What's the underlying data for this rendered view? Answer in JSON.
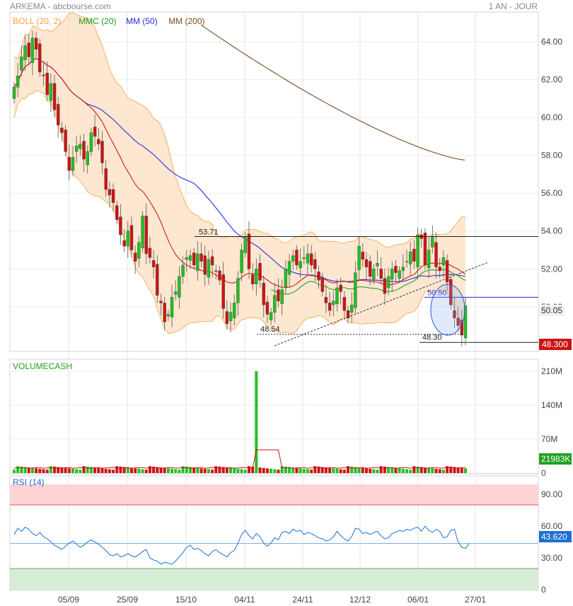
{
  "header": {
    "title": "ARKEMA - abcbourse.com",
    "period": "1 AN - JOUR"
  },
  "colors": {
    "up": "#22c022",
    "down": "#cc1414",
    "boll_fill": "#fde3c8",
    "boll_line": "#f5b262",
    "mmc20": "#189a18",
    "mm50": "#2a2ae0",
    "mm200": "#7a4a22",
    "mm20_red": "#d41a1a",
    "price_tag": "#cc1414",
    "volume_tag": "#22a022",
    "rsi_tag": "#1d6fd0",
    "rsi_line": "#2b7fd6",
    "rsi_over": "#fdd3d3",
    "rsi_under": "#d6ecd6"
  },
  "chart_data": [
    {
      "type": "candlestick",
      "legend": [
        {
          "label": "BOLL (20, 2)",
          "color": "#f5a142"
        },
        {
          "label": "MMC (20)",
          "color": "#189a18"
        },
        {
          "label": "MM (50)",
          "color": "#2a2ae0"
        },
        {
          "label": "MM (200)",
          "color": "#7a4a22"
        }
      ],
      "x_ticks": [
        "05/09",
        "25/09",
        "15/10",
        "04/11",
        "24/11",
        "12/12",
        "06/01",
        "27/01"
      ],
      "y_ticks": [
        "64.00",
        "62.00",
        "60.00",
        "58.00",
        "56.00",
        "54.00",
        "52.00",
        "50.00"
      ],
      "ylim": [
        47.6,
        65.2
      ],
      "close": [
        61.6,
        62.2,
        63.2,
        63.8,
        63.2,
        64.2,
        63.6,
        62.4,
        62.2,
        61.2,
        61.8,
        60.4,
        59.6,
        59.2,
        58.2,
        57.2,
        57.9,
        58.5,
        58.6,
        57.8,
        58.2,
        59.2,
        59.0,
        58.6,
        57.6,
        56.2,
        55.9,
        55.5,
        54.6,
        53.8,
        53.2,
        54.0,
        53.0,
        52.4,
        53.4,
        54.8,
        52.8,
        52.6,
        52.1,
        50.6,
        50.2,
        49.2,
        49.6,
        50.5,
        50.8,
        51.6,
        52.2,
        52.6,
        52.7,
        52.2,
        52.8,
        52.4,
        51.7,
        52.5,
        52.2,
        51.9,
        51.4,
        49.9,
        49.1,
        49.7,
        50.2,
        51.5,
        53.0,
        53.7,
        52.0,
        51.2,
        52.0,
        51.4,
        50.1,
        49.6,
        49.7,
        50.6,
        50.3,
        50.9,
        52.0,
        52.4,
        52.7,
        52.2,
        52.4,
        52.6,
        52.8,
        52.2,
        52.0,
        51.4,
        50.8,
        50.2,
        49.8,
        50.3,
        51.0,
        50.8,
        49.8,
        49.4,
        50.1,
        51.8,
        53.2,
        52.5,
        52.1,
        51.6,
        52.0,
        52.3,
        51.5,
        50.7,
        51.6,
        52.0,
        51.8,
        51.9,
        52.1,
        52.4,
        52.9,
        52.4,
        53.8,
        53.6,
        52.2,
        53.0,
        53.7,
        52.1,
        51.9,
        52.6,
        51.3,
        50.1,
        49.4,
        49.0,
        48.5,
        50.05
      ],
      "annotations": [
        {
          "label": "53.71",
          "value": 53.71
        },
        {
          "label": "48.54",
          "value": 48.54
        },
        {
          "label": "50.50",
          "value": 50.5
        },
        {
          "label": "48.30",
          "value": 48.3
        }
      ],
      "current_value_tag": "50.05",
      "last_price_tag": "48.300"
    },
    {
      "type": "bar",
      "title": "VOLUMECASH",
      "y_ticks": [
        "210M",
        "140M",
        "70M",
        "0"
      ],
      "ylim": [
        0,
        240
      ],
      "spike": {
        "value": 210
      },
      "last_value_tag": "21983K"
    },
    {
      "type": "line",
      "title": "RSI (14)",
      "y_ticks": [
        "90.00",
        "60.00",
        "30.00",
        "0"
      ],
      "ylim": [
        0,
        100
      ],
      "overbought": 80,
      "oversold": 20,
      "values": [
        52,
        58,
        55,
        59,
        57,
        53,
        51,
        54,
        50,
        48,
        45,
        42,
        40,
        38,
        41,
        44,
        46,
        43,
        40,
        42,
        45,
        47,
        45,
        43,
        40,
        37,
        33,
        32,
        34,
        31,
        32,
        34,
        32,
        31,
        33,
        36,
        38,
        30,
        28,
        27,
        24,
        26,
        25,
        24,
        27,
        31,
        35,
        40,
        42,
        38,
        39,
        37,
        34,
        32,
        36,
        38,
        35,
        33,
        31,
        35,
        37,
        44,
        52,
        56,
        51,
        48,
        53,
        50,
        44,
        41,
        44,
        49,
        47,
        54,
        55,
        53,
        57,
        55,
        56,
        52,
        54,
        53,
        51,
        49,
        48,
        46,
        47,
        50,
        55,
        51,
        48,
        46,
        50,
        58,
        57,
        53,
        54,
        52,
        54,
        55,
        51,
        48,
        49,
        53,
        54,
        56,
        55,
        57,
        56,
        58,
        59,
        55,
        60,
        56,
        54,
        57,
        55,
        49,
        50,
        56,
        57,
        45,
        40,
        39,
        43.62
      ],
      "last_value_tag": "43.620"
    }
  ]
}
